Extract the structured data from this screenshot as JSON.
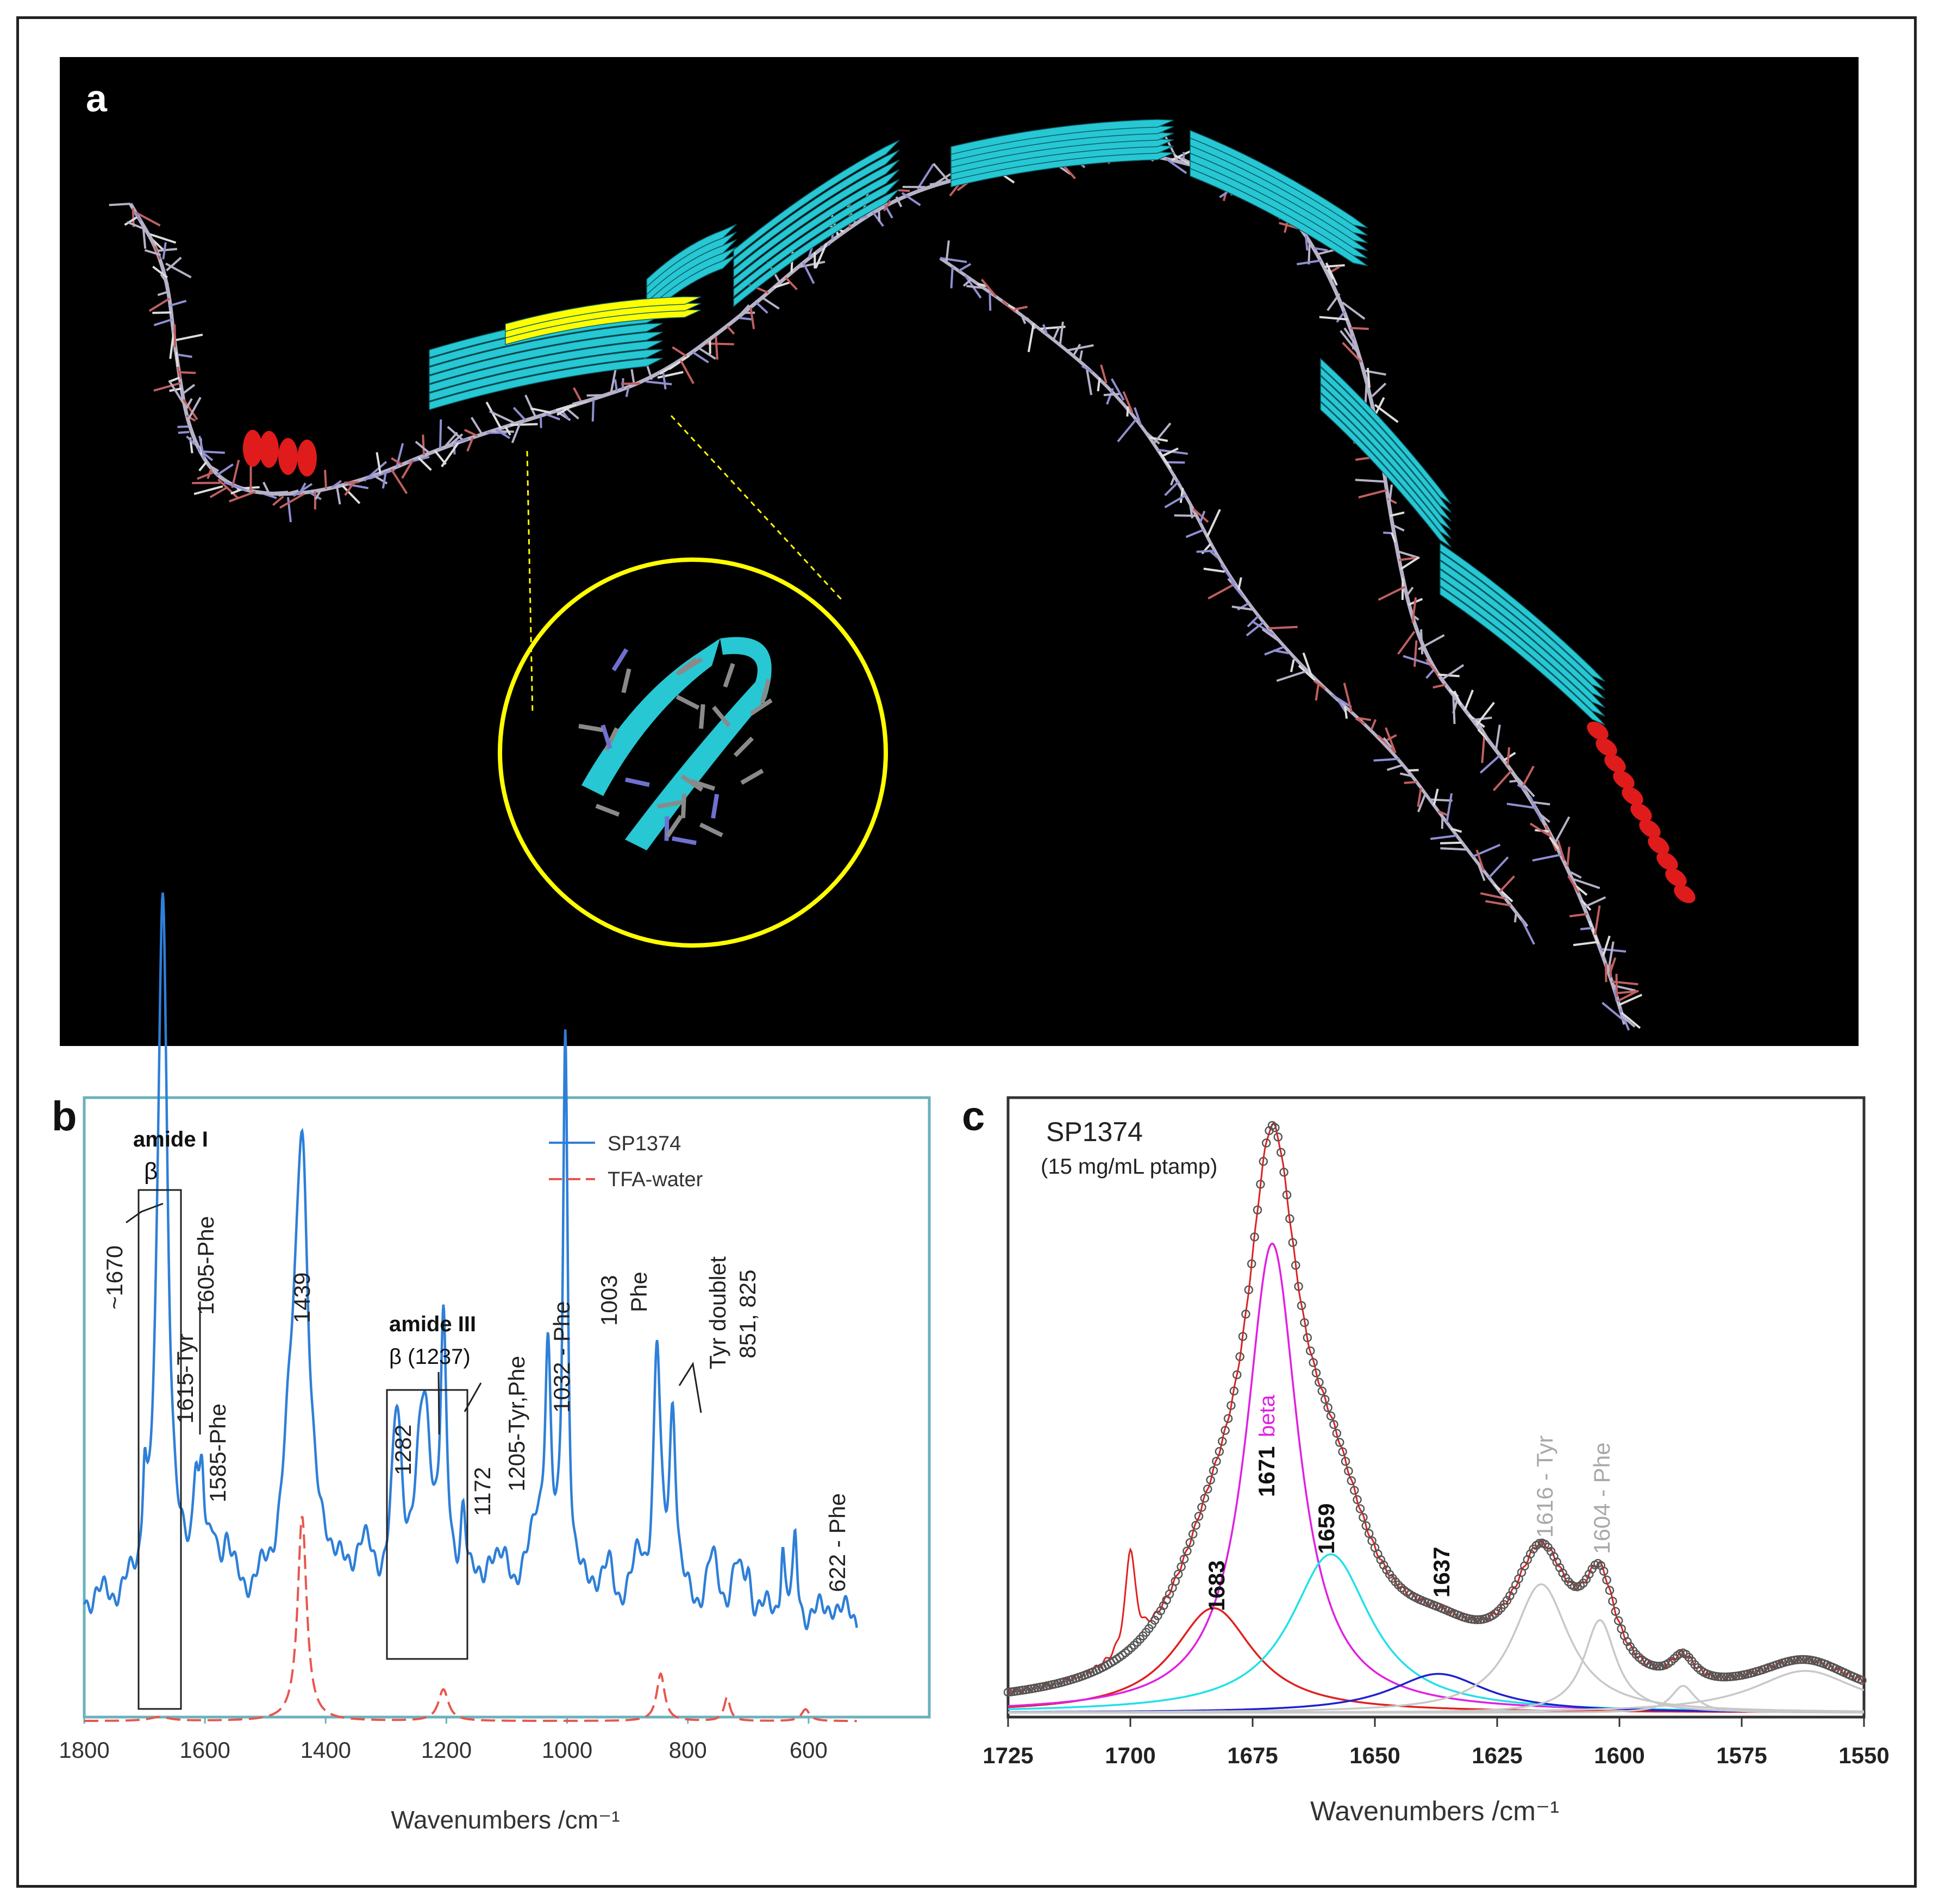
{
  "figure": {
    "panel_a": {
      "letter": "a",
      "colors": {
        "background": "#000000",
        "strand": "#27c7d4",
        "highlight": "#ffff00",
        "helix": "#e01b1b",
        "backbone": "#b7b2c7"
      }
    },
    "panel_b": {
      "letter": "b",
      "colors": {
        "series1": "#2e7fd8",
        "series2": "#e8564d",
        "frame": "#6ab1bd"
      },
      "annotations": [
        {
          "id": "amide1",
          "text": "amide I",
          "bold": true
        },
        {
          "id": "beta1",
          "text": "β"
        },
        {
          "id": "p1670",
          "text": "~1670"
        },
        {
          "id": "p1615",
          "text": "1615-Tyr"
        },
        {
          "id": "p1605",
          "text": "1605-Phe"
        },
        {
          "id": "p1585",
          "text": "1585-Phe"
        },
        {
          "id": "p1439",
          "text": "1439"
        },
        {
          "id": "amide3",
          "text": "amide III",
          "bold": true
        },
        {
          "id": "beta3",
          "text": "β (1237)"
        },
        {
          "id": "p1282",
          "text": "1282"
        },
        {
          "id": "p1205",
          "text": "1205-Tyr,Phe"
        },
        {
          "id": "p1172",
          "text": "1172"
        },
        {
          "id": "p1032",
          "text": "1032 - Phe"
        },
        {
          "id": "p1003",
          "text": "1003"
        },
        {
          "id": "p1003b",
          "text": "Phe"
        },
        {
          "id": "tyrd",
          "text": "Tyr doublet"
        },
        {
          "id": "tyrd2",
          "text": "851, 825"
        },
        {
          "id": "p622",
          "text": "622 - Phe"
        }
      ]
    },
    "panel_c": {
      "letter": "c",
      "title": "SP1374",
      "subtitle": "(15 mg/mL ptamp)",
      "colors": {
        "sum": "#555555",
        "raw": "#e02020",
        "c1683": "#e02020",
        "c1671": "#e020e0",
        "c1659": "#20e0e8",
        "c1637": "#2020d0",
        "c1616": "#c8c8c8",
        "c1604": "#c8c8c8",
        "frame": "#333333"
      },
      "labels": [
        {
          "id": "l1683",
          "text": "1683",
          "bold": true
        },
        {
          "id": "l1671",
          "text": "1671",
          "bold": true
        },
        {
          "id": "lbeta",
          "text": "beta"
        },
        {
          "id": "l1659",
          "text": "1659",
          "bold": true
        },
        {
          "id": "l1637",
          "text": "1637",
          "bold": true
        },
        {
          "id": "l1616",
          "text": "1616 - Tyr"
        },
        {
          "id": "l1604",
          "text": "1604 - Phe"
        }
      ]
    }
  },
  "chart_data": [
    {
      "type": "line",
      "panel": "b",
      "xlabel": "Wavenumbers /cm⁻¹",
      "ylabel": "",
      "xlim": [
        1800,
        520
      ],
      "x_reversed": true,
      "xticks": [
        1800,
        1600,
        1400,
        1200,
        1000,
        800,
        600
      ],
      "grid": false,
      "legend": {
        "placement": "top-right",
        "entries": [
          "SP1374",
          "TFA-water"
        ]
      },
      "series": [
        {
          "name": "SP1374",
          "style": "solid",
          "baseline": 0.1,
          "peaks": [
            [
              1700,
              0.12,
              4
            ],
            [
              1670,
              0.9,
              10
            ],
            [
              1615,
              0.14,
              6
            ],
            [
              1605,
              0.11,
              5
            ],
            [
              1585,
              0.05,
              8
            ],
            [
              1565,
              0.06,
              10
            ],
            [
              1439,
              0.5,
              12
            ],
            [
              1455,
              0.18,
              20
            ],
            [
              1400,
              0.04,
              15
            ],
            [
              1340,
              0.06,
              20
            ],
            [
              1282,
              0.21,
              10
            ],
            [
              1237,
              0.24,
              16
            ],
            [
              1205,
              0.31,
              6
            ],
            [
              1172,
              0.11,
              6
            ],
            [
              1128,
              0.05,
              12
            ],
            [
              1100,
              0.04,
              15
            ],
            [
              1050,
              0.1,
              14
            ],
            [
              1032,
              0.28,
              6
            ],
            [
              1003,
              0.72,
              5
            ],
            [
              960,
              0.03,
              15
            ],
            [
              930,
              0.04,
              10
            ],
            [
              880,
              0.06,
              12
            ],
            [
              851,
              0.31,
              7
            ],
            [
              825,
              0.25,
              7
            ],
            [
              760,
              0.06,
              12
            ],
            [
              720,
              0.05,
              10
            ],
            [
              700,
              0.05,
              6
            ],
            [
              643,
              0.09,
              4
            ],
            [
              622,
              0.09,
              4
            ],
            [
              560,
              0.02,
              10
            ]
          ]
        },
        {
          "name": "TFA-water",
          "style": "dashed",
          "baseline": -0.05,
          "peaks": [
            [
              1675,
              0.005,
              20
            ],
            [
              1439,
              0.26,
              9
            ],
            [
              1205,
              0.04,
              10
            ],
            [
              845,
              0.06,
              8
            ],
            [
              735,
              0.03,
              6
            ],
            [
              605,
              0.015,
              8
            ]
          ]
        }
      ]
    },
    {
      "type": "line",
      "panel": "c",
      "title": "SP1374",
      "subtitle": "(15 mg/mL ptamp)",
      "xlabel": "Wavenumbers /cm⁻¹",
      "ylabel": "",
      "xlim": [
        1725,
        1550
      ],
      "x_reversed": true,
      "xticks": [
        1725,
        1700,
        1675,
        1650,
        1625,
        1600,
        1575,
        1550
      ],
      "grid": false,
      "components": [
        {
          "label": "1683",
          "center": 1683,
          "height": 0.175,
          "width": 10,
          "color_key": "c1683"
        },
        {
          "label": "1671",
          "center": 1671,
          "height": 0.785,
          "width": 6.5,
          "color_key": "c1671"
        },
        {
          "label": "1659",
          "center": 1659,
          "height": 0.265,
          "width": 10,
          "color_key": "c1659"
        },
        {
          "label": "1637",
          "center": 1637,
          "height": 0.065,
          "width": 12,
          "color_key": "c1637"
        },
        {
          "label": "1616",
          "center": 1616,
          "height": 0.215,
          "width": 7,
          "color_key": "c1616"
        },
        {
          "label": "1604",
          "center": 1604,
          "height": 0.155,
          "width": 4,
          "color_key": "c1604"
        },
        {
          "label": "",
          "center": 1587,
          "height": 0.045,
          "width": 3,
          "color_key": "c1604"
        },
        {
          "label": "",
          "center": 1562,
          "height": 0.07,
          "width": 13,
          "color_key": "c1604"
        }
      ],
      "sum_baseline": 0.005,
      "raw_extra": [
        {
          "center": 1700,
          "height": 0.17,
          "width": 1.2
        }
      ]
    }
  ]
}
